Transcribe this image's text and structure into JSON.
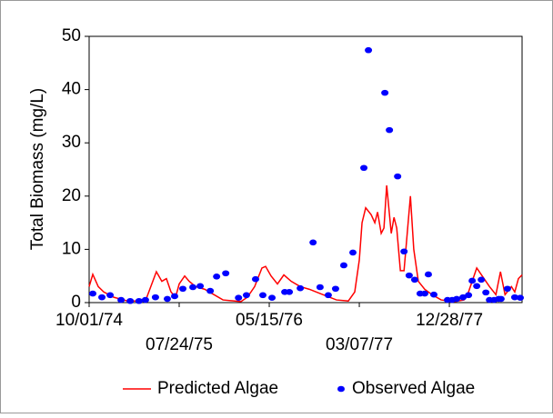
{
  "chart_data": {
    "type": "line",
    "y_label": "Total Biomass (mg/L)",
    "xlim": [
      "10/01/74",
      "08/24/78"
    ],
    "xticks": [
      "10/01/74",
      "07/24/75",
      "05/15/76",
      "03/07/77",
      "12/28/77"
    ],
    "ylim": [
      0,
      50
    ],
    "yticks": [
      0,
      10,
      20,
      30,
      40,
      50
    ],
    "grid": false,
    "legend": "bottom",
    "series": [
      {
        "name": "Predicted Algae",
        "type": "line",
        "color": "#ff0000",
        "x": [
          "10/01/74",
          "10/13/74",
          "10/31/74",
          "11/18/74",
          "12/21/74",
          "02/04/75",
          "04/04/75",
          "05/10/75",
          "05/28/75",
          "06/12/75",
          "06/27/75",
          "07/12/75",
          "07/24/75",
          "08/11/75",
          "08/26/75",
          "09/16/75",
          "10/16/75",
          "11/15/75",
          "12/15/75",
          "02/12/76",
          "03/04/76",
          "03/28/76",
          "04/21/76",
          "05/03/76",
          "05/21/76",
          "06/11/76",
          "07/02/76",
          "07/26/76",
          "08/25/76",
          "09/24/76",
          "11/07/76",
          "12/22/76",
          "01/30/77",
          "02/20/77",
          "03/07/77",
          "03/16/77",
          "03/28/77",
          "04/15/77",
          "04/27/77",
          "05/06/77",
          "05/18/77",
          "05/27/77",
          "06/05/77",
          "06/20/77",
          "06/29/77",
          "07/08/77",
          "07/20/77",
          "08/01/77",
          "08/13/77",
          "08/22/77",
          "09/02/77",
          "09/17/77",
          "10/08/77",
          "11/01/77",
          "12/01/77",
          "01/15/78",
          "02/14/78",
          "03/01/78",
          "03/28/78",
          "04/15/78",
          "05/09/78",
          "05/30/78",
          "06/14/78",
          "06/29/78",
          "07/20/78",
          "07/31/78",
          "08/12/78",
          "08/24/78"
        ],
        "values": [
          3,
          5.3,
          3,
          2,
          1,
          0.3,
          0.3,
          5.8,
          4,
          4.5,
          2,
          1,
          3.5,
          5,
          4,
          3,
          2.5,
          1.5,
          0.5,
          0.2,
          1,
          3,
          6.5,
          6.8,
          5,
          3.5,
          5.2,
          4,
          3,
          2.5,
          1.5,
          0.5,
          0.3,
          2,
          8,
          15,
          17.8,
          16.5,
          15,
          17,
          13,
          14,
          22,
          13,
          16,
          14,
          6,
          6,
          14,
          20,
          10,
          4,
          2.5,
          1.5,
          0.5,
          0.2,
          0.5,
          2,
          6.5,
          5,
          3,
          1.5,
          5.8,
          1.5,
          3,
          2,
          4.5,
          5.2
        ]
      },
      {
        "name": "Observed Algae",
        "type": "scatter",
        "color": "#0000ff",
        "x": [
          "10/13/74",
          "11/12/74",
          "12/09/74",
          "01/14/75",
          "02/13/75",
          "03/14/75",
          "04/04/75",
          "05/07/75",
          "06/15/75",
          "07/09/75",
          "08/05/75",
          "09/07/75",
          "10/01/75",
          "11/03/75",
          "11/24/75",
          "12/24/75",
          "02/04/76",
          "03/01/76",
          "03/31/76",
          "04/24/76",
          "05/24/76",
          "07/05/76",
          "07/20/76",
          "08/25/76",
          "10/06/76",
          "10/29/76",
          "11/25/76",
          "12/19/76",
          "01/15/77",
          "02/14/77",
          "03/22/77",
          "04/06/77",
          "05/30/77",
          "06/14/77",
          "07/11/77",
          "08/01/77",
          "08/18/77",
          "09/05/77",
          "09/23/77",
          "10/08/77",
          "10/20/77",
          "11/07/77",
          "12/22/77",
          "01/06/78",
          "01/21/78",
          "02/11/78",
          "03/01/78",
          "03/13/78",
          "03/28/78",
          "04/12/78",
          "04/27/78",
          "05/09/78",
          "05/24/78",
          "06/08/78",
          "06/16/78",
          "07/07/78",
          "07/31/78",
          "08/18/78"
        ],
        "values": [
          1.7,
          1.0,
          1.4,
          0.5,
          0.3,
          0.3,
          0.5,
          1.0,
          0.7,
          1.2,
          2.6,
          2.9,
          3.1,
          2.2,
          4.9,
          5.5,
          0.9,
          1.4,
          4.4,
          1.4,
          0.9,
          2.0,
          2.0,
          2.7,
          11.3,
          2.9,
          1.4,
          2.6,
          7.0,
          9.4,
          25.3,
          47.4,
          39.4,
          32.4,
          23.7,
          9.6,
          5.1,
          4.3,
          1.7,
          1.7,
          5.3,
          1.5,
          0.5,
          0.5,
          0.7,
          1.0,
          1.4,
          4.1,
          3.1,
          4.3,
          1.9,
          0.5,
          0.5,
          0.7,
          0.7,
          2.6,
          1.0,
          0.9
        ]
      }
    ]
  }
}
